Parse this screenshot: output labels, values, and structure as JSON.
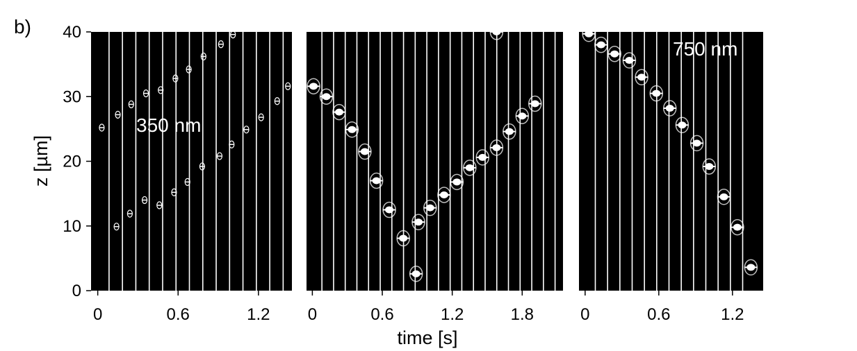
{
  "figure_label": "b)",
  "colors": {
    "panel_bg": "#000000",
    "frame_line": "#ffffff",
    "particle": "#ffffff"
  },
  "chart_data": [
    {
      "type": "scatter",
      "panel_label": "350 nm",
      "xlabel": "time [s]",
      "ylabel": "z [µm]",
      "ylim": [
        0,
        40
      ],
      "xlim": [
        -0.05,
        1.45
      ],
      "x_ticks": [
        "0",
        "0.6",
        "1.2"
      ],
      "y_ticks": [
        "0",
        "10",
        "20",
        "30",
        "40"
      ],
      "frame_lines_s": [
        0.1,
        0.2,
        0.3,
        0.4,
        0.5,
        0.6,
        0.7,
        0.8,
        0.9,
        1.0,
        1.1,
        1.2,
        1.3,
        1.4
      ],
      "points": [
        {
          "x": 0.03,
          "y": 25.2
        },
        {
          "x": 0.15,
          "y": 27.2
        },
        {
          "x": 0.25,
          "y": 28.8
        },
        {
          "x": 0.36,
          "y": 30.5
        },
        {
          "x": 0.47,
          "y": 31.0
        },
        {
          "x": 0.58,
          "y": 32.8
        },
        {
          "x": 0.68,
          "y": 34.2
        },
        {
          "x": 0.79,
          "y": 36.2
        },
        {
          "x": 0.92,
          "y": 38.1
        },
        {
          "x": 1.01,
          "y": 39.6
        },
        {
          "x": 0.14,
          "y": 9.9
        },
        {
          "x": 0.24,
          "y": 11.9
        },
        {
          "x": 0.35,
          "y": 14.0
        },
        {
          "x": 0.46,
          "y": 13.2
        },
        {
          "x": 0.57,
          "y": 15.2
        },
        {
          "x": 0.67,
          "y": 16.8
        },
        {
          "x": 0.78,
          "y": 19.2
        },
        {
          "x": 0.91,
          "y": 20.8
        },
        {
          "x": 1.0,
          "y": 22.6
        },
        {
          "x": 1.11,
          "y": 24.9
        },
        {
          "x": 1.22,
          "y": 26.8
        },
        {
          "x": 1.34,
          "y": 29.3
        },
        {
          "x": 1.42,
          "y": 31.6
        }
      ]
    },
    {
      "type": "scatter",
      "xlabel": "time [s]",
      "ylabel": "z [µm]",
      "ylim": [
        0,
        40
      ],
      "xlim": [
        -0.05,
        2.15
      ],
      "x_ticks": [
        "0",
        "0.6",
        "1.2",
        "1.8"
      ],
      "y_ticks": [
        "0",
        "10",
        "20",
        "30",
        "40"
      ],
      "frame_lines_s": [
        0.1,
        0.2,
        0.3,
        0.4,
        0.5,
        0.6,
        0.7,
        0.8,
        0.9,
        1.0,
        1.1,
        1.2,
        1.3,
        1.4,
        1.5,
        1.6,
        1.7,
        1.8,
        1.9,
        2.0,
        2.1
      ],
      "points": [
        {
          "x": 0.01,
          "y": 31.6
        },
        {
          "x": 0.12,
          "y": 30.0
        },
        {
          "x": 0.23,
          "y": 27.6
        },
        {
          "x": 0.34,
          "y": 24.9
        },
        {
          "x": 0.45,
          "y": 21.5
        },
        {
          "x": 0.55,
          "y": 17.0
        },
        {
          "x": 0.66,
          "y": 12.5
        },
        {
          "x": 0.78,
          "y": 8.1
        },
        {
          "x": 0.89,
          "y": 2.6
        },
        {
          "x": 0.91,
          "y": 10.6
        },
        {
          "x": 1.01,
          "y": 12.8
        },
        {
          "x": 1.13,
          "y": 14.8
        },
        {
          "x": 1.24,
          "y": 16.8
        },
        {
          "x": 1.35,
          "y": 19.0
        },
        {
          "x": 1.46,
          "y": 20.6
        },
        {
          "x": 1.58,
          "y": 22.1
        },
        {
          "x": 1.69,
          "y": 24.6
        },
        {
          "x": 1.8,
          "y": 27.0
        },
        {
          "x": 1.91,
          "y": 28.9
        },
        {
          "x": 1.58,
          "y": 40.0
        }
      ]
    },
    {
      "type": "scatter",
      "panel_label": "750 nm",
      "xlabel": "time [s]",
      "ylabel": "z [µm]",
      "ylim": [
        0,
        40
      ],
      "xlim": [
        -0.05,
        1.45
      ],
      "x_ticks": [
        "0",
        "0.6",
        "1.2"
      ],
      "y_ticks": [
        "0",
        "10",
        "20",
        "30",
        "40"
      ],
      "frame_lines_s": [
        0.1,
        0.2,
        0.3,
        0.4,
        0.5,
        0.6,
        0.7,
        0.8,
        0.9,
        1.0,
        1.1,
        1.2,
        1.3
      ],
      "points": [
        {
          "x": 0.03,
          "y": 39.7
        },
        {
          "x": 0.13,
          "y": 38.0
        },
        {
          "x": 0.24,
          "y": 36.6
        },
        {
          "x": 0.36,
          "y": 35.6
        },
        {
          "x": 0.46,
          "y": 33.0
        },
        {
          "x": 0.58,
          "y": 30.5
        },
        {
          "x": 0.69,
          "y": 28.2
        },
        {
          "x": 0.79,
          "y": 25.6
        },
        {
          "x": 0.91,
          "y": 22.8
        },
        {
          "x": 1.01,
          "y": 19.2
        },
        {
          "x": 1.13,
          "y": 14.5
        },
        {
          "x": 1.24,
          "y": 9.8
        },
        {
          "x": 1.35,
          "y": 3.6
        }
      ]
    }
  ],
  "shared_xlabel": "time [s]"
}
